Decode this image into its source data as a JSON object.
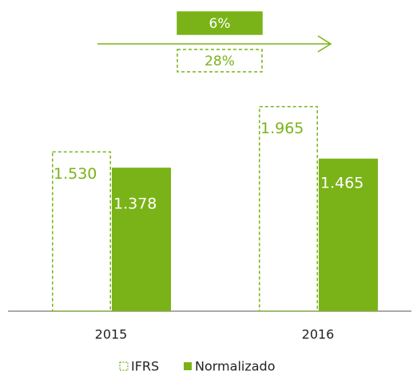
{
  "chart_data": {
    "type": "bar",
    "categories": [
      "2015",
      "2016"
    ],
    "series": [
      {
        "name": "IFRS",
        "color": "#7ab317",
        "style": "dashed",
        "values": [
          1530,
          1965
        ],
        "value_labels": [
          "1.530",
          "1.965"
        ]
      },
      {
        "name": "Normalizado",
        "color": "#7ab317",
        "style": "filled",
        "values": [
          1378,
          1465
        ],
        "value_labels": [
          "1.378",
          "1.465"
        ]
      }
    ],
    "annotations": [
      "6%",
      "28%"
    ],
    "ylim": [
      0,
      2000
    ],
    "legend": "bottom"
  }
}
